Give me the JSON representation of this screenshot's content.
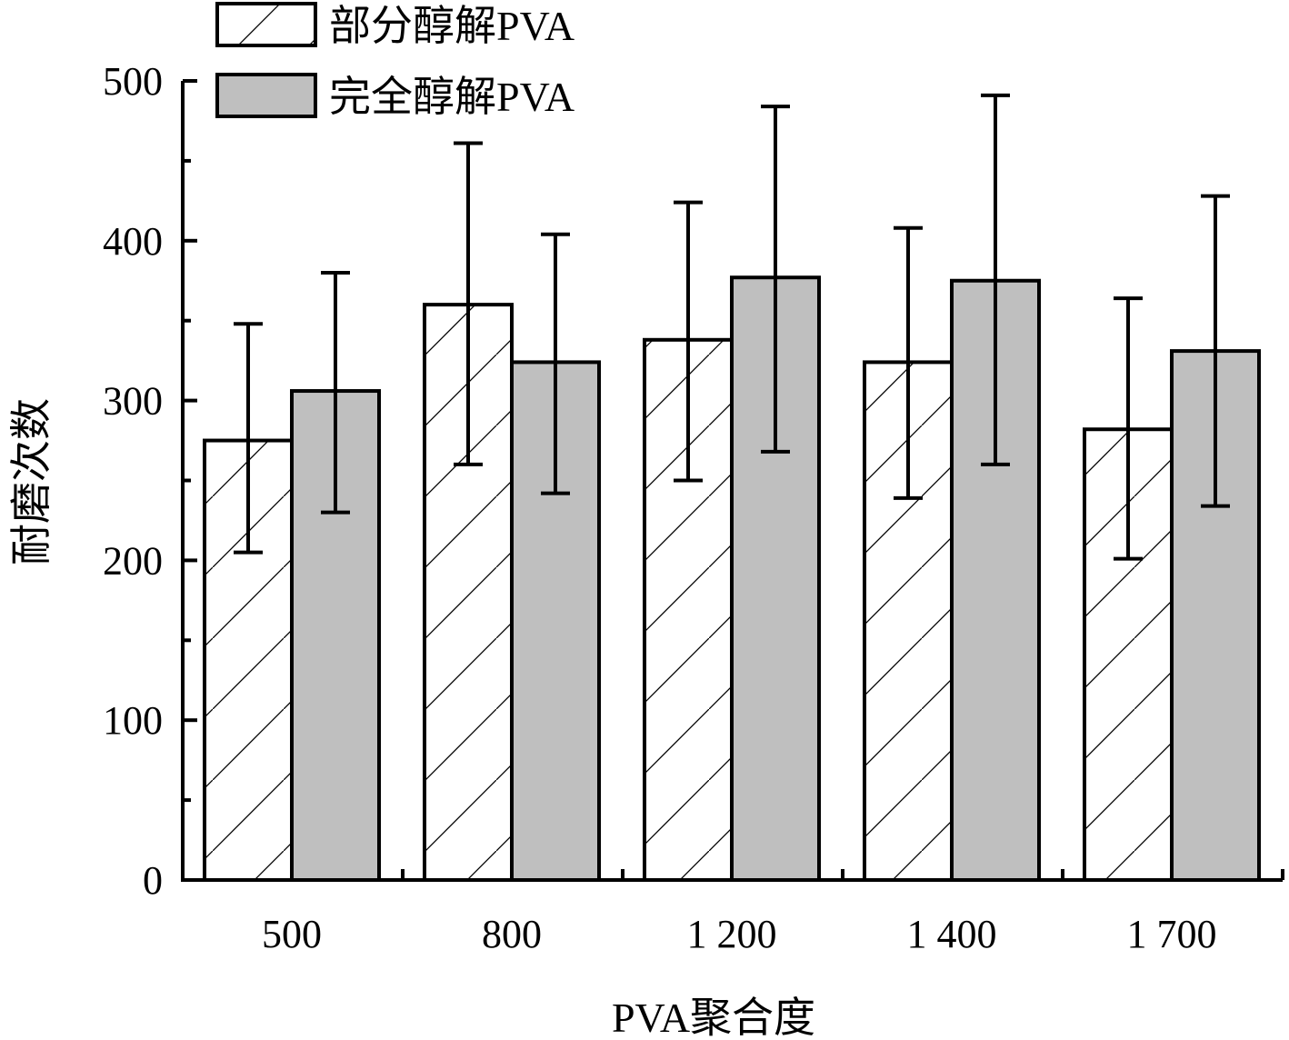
{
  "chart_data": {
    "type": "bar",
    "title": "",
    "xlabel": "PVA聚合度",
    "ylabel": "耐磨次数",
    "ylim": [
      0,
      500
    ],
    "yticks": [
      "0",
      "100",
      "200",
      "300",
      "400",
      "500"
    ],
    "categories": [
      "500",
      "800",
      "1 200",
      "1 400",
      "1 700"
    ],
    "legend_position": "top-left",
    "series": [
      {
        "name": "部分醇解PVA",
        "fill": "hatched",
        "color": "#ffffff",
        "values": [
          275,
          360,
          338,
          324,
          282
        ],
        "err_high": [
          348,
          461,
          424,
          408,
          364
        ],
        "err_low": [
          205,
          260,
          250,
          239,
          201
        ]
      },
      {
        "name": "完全醇解PVA",
        "fill": "solid",
        "color": "#bfbfbf",
        "values": [
          306,
          324,
          377,
          375,
          331
        ],
        "err_high": [
          380,
          404,
          484,
          491,
          428
        ],
        "err_low": [
          230,
          242,
          268,
          260,
          234
        ]
      }
    ]
  }
}
